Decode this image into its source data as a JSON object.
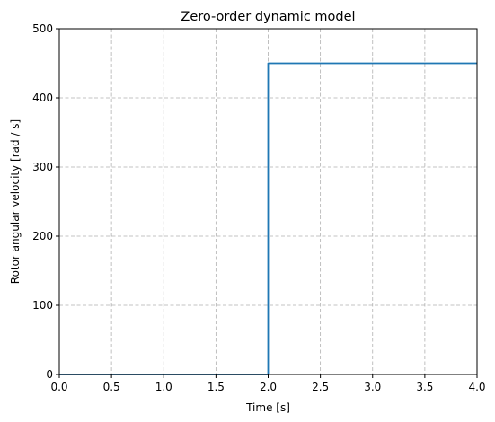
{
  "chart_data": {
    "type": "line",
    "title": "Zero-order dynamic model",
    "xlabel": "Time [s]",
    "ylabel": "Rotor angular velocity [rad / s]",
    "xlim": [
      0.0,
      4.0
    ],
    "ylim": [
      0,
      500
    ],
    "x_ticks": [
      "0.0",
      "0.5",
      "1.0",
      "1.5",
      "2.0",
      "2.5",
      "3.0",
      "3.5",
      "4.0"
    ],
    "y_ticks": [
      "0",
      "100",
      "200",
      "300",
      "400",
      "500"
    ],
    "grid": true,
    "legend": "none",
    "series": [
      {
        "x": [
          0.0,
          2.0,
          2.0,
          4.0
        ],
        "y": [
          0,
          0,
          450,
          450
        ]
      }
    ]
  },
  "colors": {
    "line": "#1f77b4",
    "grid": "#b0b0b0",
    "axes": "#000000"
  }
}
